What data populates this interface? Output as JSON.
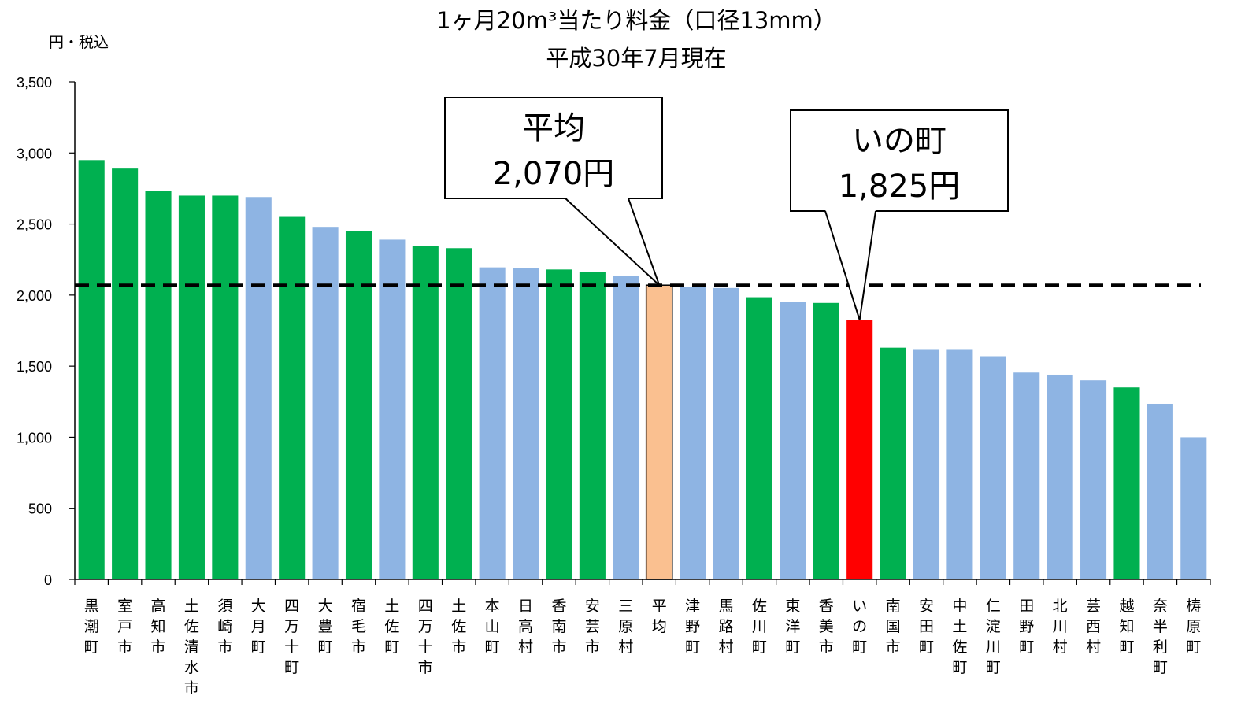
{
  "chart_data": {
    "type": "bar",
    "title": "1ヶ月20m³当たり料金（口径13mm）",
    "subtitle": "平成30年7月現在",
    "ylabel": "円・税込",
    "ylim": [
      0,
      3500
    ],
    "yticks": [
      0,
      500,
      1000,
      1500,
      2000,
      2500,
      3000,
      3500
    ],
    "ytick_labels": [
      "0",
      "500",
      "1,000",
      "1,500",
      "2,000",
      "2,500",
      "3,000",
      "3,500"
    ],
    "average_line": 2070,
    "categories": [
      "黒潮町",
      "室戸市",
      "高知市",
      "土佐清水市",
      "須崎市",
      "大月町",
      "四万十町",
      "大豊町",
      "宿毛市",
      "土佐町",
      "四万十市",
      "土佐市",
      "本山町",
      "日高村",
      "香南市",
      "安芸市",
      "三原村",
      "平均",
      "津野町",
      "馬路村",
      "佐川町",
      "東洋町",
      "香美市",
      "いの町",
      "南国市",
      "安田町",
      "中土佐町",
      "仁淀川町",
      "田野町",
      "北川村",
      "芸西村",
      "越知町",
      "奈半利町",
      "梼原町"
    ],
    "values": [
      2950,
      2890,
      2735,
      2700,
      2700,
      2690,
      2550,
      2480,
      2450,
      2390,
      2345,
      2330,
      2195,
      2190,
      2180,
      2160,
      2135,
      2070,
      2055,
      2050,
      1985,
      1950,
      1945,
      1825,
      1630,
      1620,
      1620,
      1570,
      1455,
      1440,
      1400,
      1350,
      1235,
      1000
    ],
    "bar_colors": [
      "#00B050",
      "#00B050",
      "#00B050",
      "#00B050",
      "#00B050",
      "#8EB4E3",
      "#00B050",
      "#8EB4E3",
      "#00B050",
      "#8EB4E3",
      "#00B050",
      "#00B050",
      "#8EB4E3",
      "#8EB4E3",
      "#00B050",
      "#00B050",
      "#8EB4E3",
      "#FAC090",
      "#8EB4E3",
      "#8EB4E3",
      "#00B050",
      "#8EB4E3",
      "#00B050",
      "#FF0000",
      "#00B050",
      "#8EB4E3",
      "#8EB4E3",
      "#8EB4E3",
      "#8EB4E3",
      "#8EB4E3",
      "#8EB4E3",
      "#00B050",
      "#8EB4E3",
      "#8EB4E3"
    ],
    "annotations": [
      {
        "line1": "平均",
        "line2": "2,070円",
        "target": "平均"
      },
      {
        "line1": "いの町",
        "line2": "1,825円",
        "target": "いの町"
      }
    ],
    "colors": {
      "green": "#00B050",
      "blue": "#8EB4E3",
      "average": "#FAC090",
      "highlight": "#FF0000",
      "avg_line": "#000000"
    }
  }
}
